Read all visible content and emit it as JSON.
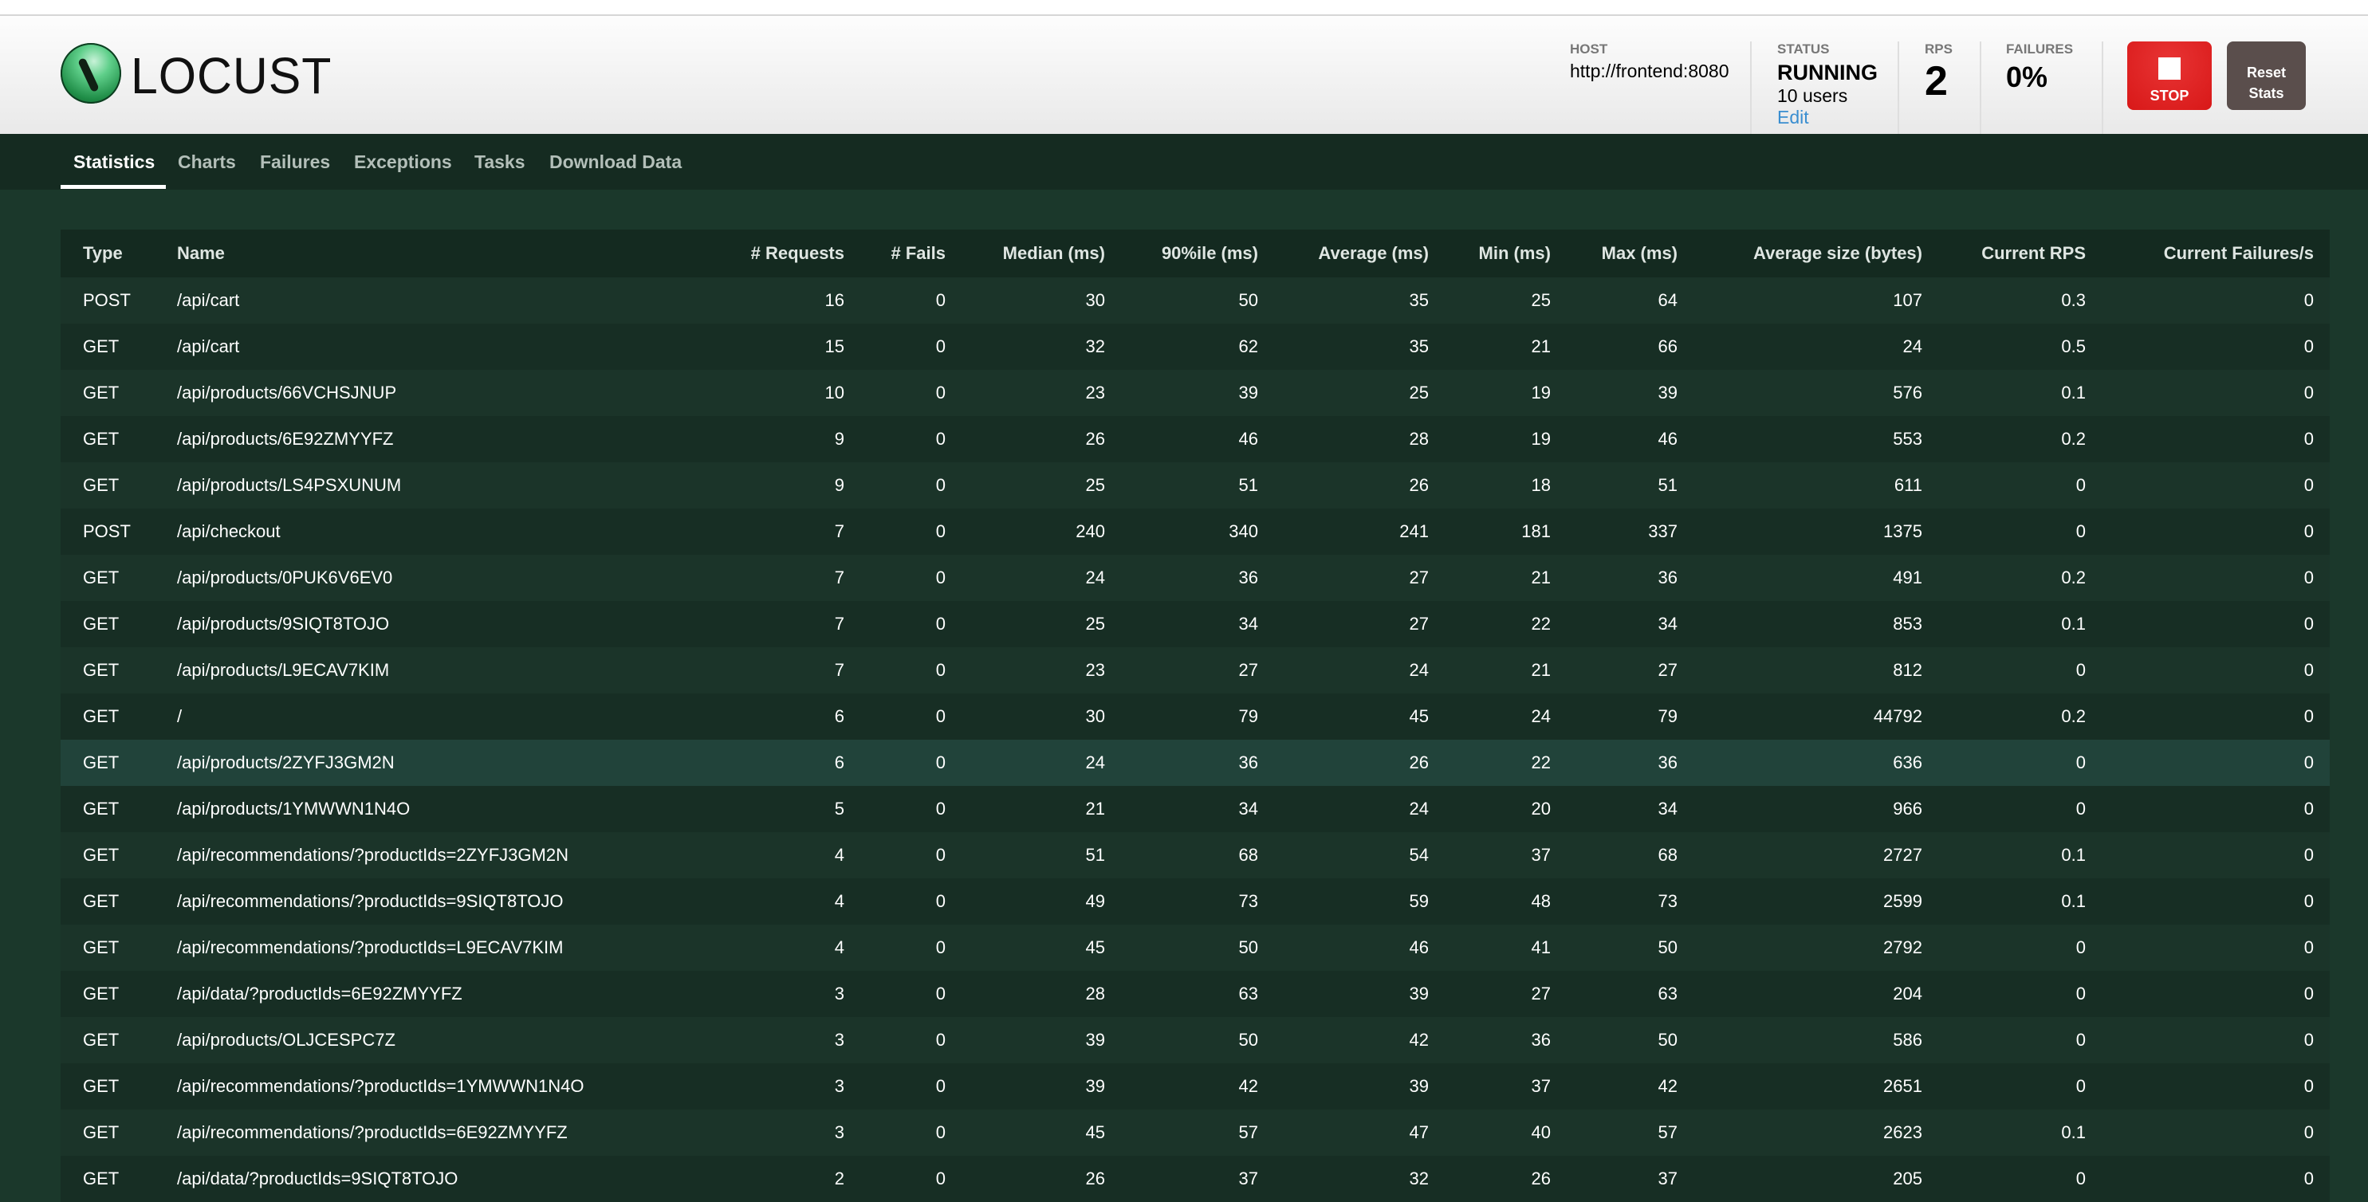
{
  "app": {
    "logo_text": "LOCUST"
  },
  "header": {
    "host_label": "HOST",
    "host": "http://frontend:8080",
    "status_label": "STATUS",
    "status": "RUNNING",
    "users": "10 users",
    "edit": "Edit",
    "rps_label": "RPS",
    "rps": "2",
    "failures_label": "FAILURES",
    "failures": "0%",
    "stop_label": "STOP",
    "reset_line1": "Reset",
    "reset_line2": "Stats",
    "colors": {
      "stop": "#d81818",
      "reset": "#5a4e4c",
      "edit_link": "#3a8ed0"
    }
  },
  "nav": {
    "tabs": [
      {
        "label": "Statistics",
        "active": true
      },
      {
        "label": "Charts"
      },
      {
        "label": "Failures"
      },
      {
        "label": "Exceptions"
      },
      {
        "label": "Tasks"
      },
      {
        "label": "Download Data"
      }
    ]
  },
  "table": {
    "columns": [
      "Type",
      "Name",
      "# Requests",
      "# Fails",
      "Median (ms)",
      "90%ile (ms)",
      "Average (ms)",
      "Min (ms)",
      "Max (ms)",
      "Average size (bytes)",
      "Current RPS",
      "Current Failures/s"
    ],
    "highlighted_row": 10,
    "rows": [
      [
        "POST",
        "/api/cart",
        "16",
        "0",
        "30",
        "50",
        "35",
        "25",
        "64",
        "107",
        "0.3",
        "0"
      ],
      [
        "GET",
        "/api/cart",
        "15",
        "0",
        "32",
        "62",
        "35",
        "21",
        "66",
        "24",
        "0.5",
        "0"
      ],
      [
        "GET",
        "/api/products/66VCHSJNUP",
        "10",
        "0",
        "23",
        "39",
        "25",
        "19",
        "39",
        "576",
        "0.1",
        "0"
      ],
      [
        "GET",
        "/api/products/6E92ZMYYFZ",
        "9",
        "0",
        "26",
        "46",
        "28",
        "19",
        "46",
        "553",
        "0.2",
        "0"
      ],
      [
        "GET",
        "/api/products/LS4PSXUNUM",
        "9",
        "0",
        "25",
        "51",
        "26",
        "18",
        "51",
        "611",
        "0",
        "0"
      ],
      [
        "POST",
        "/api/checkout",
        "7",
        "0",
        "240",
        "340",
        "241",
        "181",
        "337",
        "1375",
        "0",
        "0"
      ],
      [
        "GET",
        "/api/products/0PUK6V6EV0",
        "7",
        "0",
        "24",
        "36",
        "27",
        "21",
        "36",
        "491",
        "0.2",
        "0"
      ],
      [
        "GET",
        "/api/products/9SIQT8TOJO",
        "7",
        "0",
        "25",
        "34",
        "27",
        "22",
        "34",
        "853",
        "0.1",
        "0"
      ],
      [
        "GET",
        "/api/products/L9ECAV7KIM",
        "7",
        "0",
        "23",
        "27",
        "24",
        "21",
        "27",
        "812",
        "0",
        "0"
      ],
      [
        "GET",
        "/",
        "6",
        "0",
        "30",
        "79",
        "45",
        "24",
        "79",
        "44792",
        "0.2",
        "0"
      ],
      [
        "GET",
        "/api/products/2ZYFJ3GM2N",
        "6",
        "0",
        "24",
        "36",
        "26",
        "22",
        "36",
        "636",
        "0",
        "0"
      ],
      [
        "GET",
        "/api/products/1YMWWN1N4O",
        "5",
        "0",
        "21",
        "34",
        "24",
        "20",
        "34",
        "966",
        "0",
        "0"
      ],
      [
        "GET",
        "/api/recommendations/?productIds=2ZYFJ3GM2N",
        "4",
        "0",
        "51",
        "68",
        "54",
        "37",
        "68",
        "2727",
        "0.1",
        "0"
      ],
      [
        "GET",
        "/api/recommendations/?productIds=9SIQT8TOJO",
        "4",
        "0",
        "49",
        "73",
        "59",
        "48",
        "73",
        "2599",
        "0.1",
        "0"
      ],
      [
        "GET",
        "/api/recommendations/?productIds=L9ECAV7KIM",
        "4",
        "0",
        "45",
        "50",
        "46",
        "41",
        "50",
        "2792",
        "0",
        "0"
      ],
      [
        "GET",
        "/api/data/?productIds=6E92ZMYYFZ",
        "3",
        "0",
        "28",
        "63",
        "39",
        "27",
        "63",
        "204",
        "0",
        "0"
      ],
      [
        "GET",
        "/api/products/OLJCESPC7Z",
        "3",
        "0",
        "39",
        "50",
        "42",
        "36",
        "50",
        "586",
        "0",
        "0"
      ],
      [
        "GET",
        "/api/recommendations/?productIds=1YMWWN1N4O",
        "3",
        "0",
        "39",
        "42",
        "39",
        "37",
        "42",
        "2651",
        "0",
        "0"
      ],
      [
        "GET",
        "/api/recommendations/?productIds=6E92ZMYYFZ",
        "3",
        "0",
        "45",
        "57",
        "47",
        "40",
        "57",
        "2623",
        "0.1",
        "0"
      ],
      [
        "GET",
        "/api/data/?productIds=9SIQT8TOJO",
        "2",
        "0",
        "26",
        "37",
        "32",
        "26",
        "37",
        "205",
        "0",
        "0"
      ]
    ]
  }
}
